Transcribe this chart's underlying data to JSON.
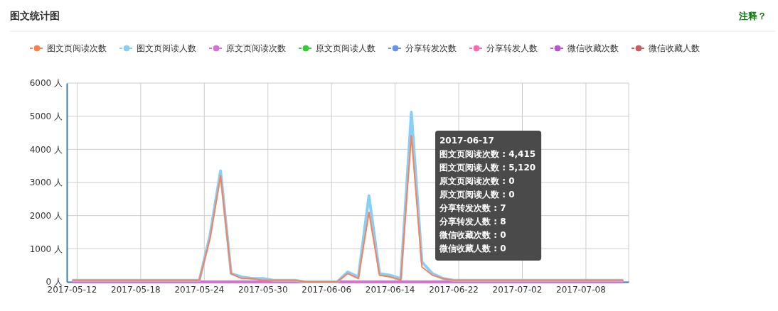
{
  "chart_data": {
    "type": "line",
    "title": "图文统计图",
    "categories": [
      "2017-05-12",
      null,
      null,
      null,
      null,
      null,
      "2017-05-18",
      null,
      null,
      null,
      null,
      null,
      "2017-05-24",
      null,
      null,
      null,
      null,
      null,
      "2017-05-30",
      null,
      null,
      null,
      null,
      null,
      "2017-06-06",
      null,
      null,
      null,
      null,
      null,
      "2017-06-14",
      null,
      null,
      null,
      null,
      null,
      "2017-06-22",
      null,
      null,
      null,
      null,
      null,
      "2017-07-02",
      null,
      null,
      null,
      null,
      null,
      "2017-07-08",
      null,
      null,
      null,
      null
    ],
    "series": [
      {
        "name": "图文页阅读次数",
        "color": "#ff7f50",
        "values": [
          50,
          50,
          50,
          50,
          50,
          50,
          50,
          50,
          50,
          50,
          50,
          50,
          50,
          1300,
          3200,
          250,
          100,
          100,
          50,
          50,
          50,
          50,
          0,
          0,
          0,
          0,
          250,
          100,
          2100,
          200,
          150,
          50,
          4415,
          450,
          200,
          100,
          50,
          50,
          50,
          50,
          50,
          50,
          50,
          50,
          50,
          50,
          50,
          50,
          50,
          50,
          50,
          50,
          50
        ]
      },
      {
        "name": "图文页阅读人数",
        "color": "#87cefa",
        "values": [
          50,
          50,
          50,
          50,
          50,
          50,
          50,
          50,
          50,
          50,
          50,
          50,
          50,
          1400,
          3350,
          250,
          150,
          100,
          100,
          50,
          50,
          50,
          0,
          0,
          0,
          0,
          300,
          150,
          2600,
          250,
          200,
          100,
          5120,
          600,
          250,
          100,
          50,
          50,
          50,
          50,
          50,
          50,
          50,
          50,
          50,
          50,
          50,
          50,
          50,
          50,
          50,
          50,
          50
        ]
      },
      {
        "name": "原文页阅读次数",
        "color": "#da70d6",
        "values": [
          0,
          0,
          0,
          0,
          0,
          0,
          0,
          0,
          0,
          0,
          0,
          0,
          0,
          0,
          0,
          0,
          0,
          0,
          0,
          0,
          0,
          0,
          0,
          0,
          0,
          0,
          0,
          0,
          0,
          0,
          0,
          0,
          0,
          0,
          0,
          0,
          0,
          0,
          0,
          0,
          0,
          0,
          0,
          0,
          0,
          0,
          0,
          0,
          0,
          0,
          0,
          0,
          0
        ]
      },
      {
        "name": "原文页阅读人数",
        "color": "#32cd32",
        "values": [
          null,
          null,
          null,
          null,
          null,
          null,
          null,
          null,
          null,
          null,
          null,
          null,
          null,
          null,
          null,
          null,
          null,
          null,
          null,
          null,
          null,
          null,
          null,
          null,
          null,
          null,
          null,
          null,
          null,
          null,
          null,
          null,
          null,
          null,
          null,
          null,
          null,
          null,
          null,
          null,
          null,
          null,
          null,
          null,
          null,
          null,
          null,
          null,
          null,
          null,
          null,
          null,
          null
        ]
      },
      {
        "name": "分享转发次数",
        "color": "#6495ed",
        "values": [
          null,
          null,
          null,
          null,
          null,
          null,
          null,
          null,
          null,
          null,
          null,
          null,
          null,
          null,
          null,
          null,
          null,
          null,
          null,
          null,
          null,
          null,
          null,
          null,
          null,
          null,
          null,
          null,
          null,
          null,
          null,
          null,
          null,
          null,
          null,
          null,
          null,
          null,
          null,
          null,
          null,
          null,
          null,
          null,
          null,
          null,
          null,
          null,
          null,
          null,
          null,
          null,
          null
        ]
      },
      {
        "name": "分享转发人数",
        "color": "#ff69b4",
        "values": [
          null,
          null,
          null,
          null,
          null,
          null,
          null,
          null,
          null,
          null,
          null,
          null,
          null,
          null,
          null,
          null,
          null,
          null,
          null,
          null,
          null,
          null,
          null,
          null,
          null,
          null,
          null,
          null,
          null,
          null,
          null,
          null,
          null,
          null,
          null,
          null,
          null,
          null,
          null,
          null,
          null,
          null,
          null,
          null,
          null,
          null,
          null,
          null,
          null,
          null,
          null,
          null,
          null
        ]
      },
      {
        "name": "微信收藏次数",
        "color": "#ba55d3",
        "values": [
          null,
          null,
          null,
          null,
          null,
          null,
          null,
          null,
          null,
          null,
          null,
          null,
          null,
          null,
          null,
          null,
          null,
          null,
          null,
          null,
          null,
          null,
          null,
          null,
          null,
          null,
          null,
          null,
          null,
          null,
          null,
          null,
          null,
          null,
          null,
          null,
          null,
          null,
          null,
          null,
          null,
          null,
          null,
          null,
          null,
          null,
          null,
          null,
          null,
          null,
          null,
          null,
          null
        ]
      },
      {
        "name": "微信收藏人数",
        "color": "#cd5c5c",
        "values": [
          null,
          null,
          null,
          null,
          null,
          null,
          null,
          null,
          null,
          null,
          null,
          null,
          null,
          null,
          null,
          null,
          null,
          null,
          null,
          null,
          null,
          null,
          null,
          null,
          null,
          null,
          null,
          null,
          null,
          null,
          null,
          null,
          null,
          null,
          null,
          null,
          null,
          null,
          null,
          null,
          null,
          null,
          null,
          null,
          null,
          null,
          null,
          null,
          null,
          null,
          null,
          null,
          null
        ]
      }
    ],
    "ylim": [
      0,
      6000
    ],
    "yticks": [
      {
        "value": 0,
        "label": "0 人"
      },
      {
        "value": 1000,
        "label": "1000 人"
      },
      {
        "value": 2000,
        "label": "2000 人"
      },
      {
        "value": 3000,
        "label": "3000 人"
      },
      {
        "value": 4000,
        "label": "4000 人"
      },
      {
        "value": 5000,
        "label": "5000 人"
      },
      {
        "value": 6000,
        "label": "6000 人"
      }
    ],
    "grid": true,
    "legend": "top left",
    "annotations": [
      "注释？",
      "2017-06-17",
      "图文页阅读次数 : 4,415",
      "图文页阅读人数 : 5,120",
      "原文页阅读次数 : 0",
      "原文页阅读人数 : 0",
      "分享转发次数 : 7",
      "分享转发人数 : 8",
      "微信收藏次数 : 0",
      "微信收藏人数 : 0"
    ]
  }
}
